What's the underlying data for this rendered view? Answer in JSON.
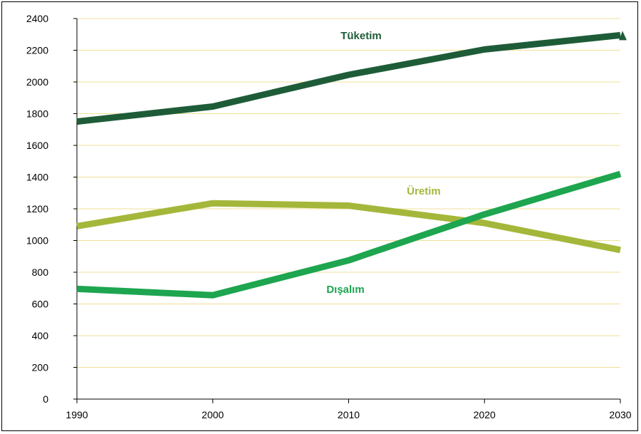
{
  "chart_data": {
    "type": "line",
    "title": "",
    "xlabel": "",
    "ylabel": "",
    "x": [
      1990,
      2000,
      2010,
      2020,
      2030
    ],
    "xlim": [
      1990,
      2030
    ],
    "ylim": [
      0,
      2400
    ],
    "yticks": [
      0,
      200,
      400,
      600,
      800,
      1000,
      1200,
      1400,
      1600,
      1800,
      2000,
      2200,
      2400
    ],
    "xticks": [
      1990,
      2000,
      2010,
      2020,
      2030
    ],
    "grid": "horizontal",
    "series": [
      {
        "name": "Tüketim",
        "values": [
          1750,
          1845,
          2045,
          2205,
          2295
        ],
        "color": "#1e5c38",
        "end_marker": "triangle"
      },
      {
        "name": "Üretim",
        "values": [
          1090,
          1235,
          1220,
          1110,
          940
        ],
        "color": "#a5b73a"
      },
      {
        "name": "Dışalım",
        "values": [
          695,
          655,
          875,
          1165,
          1420
        ],
        "color": "#1da54f"
      }
    ],
    "grid_color": "#f0df9a"
  }
}
